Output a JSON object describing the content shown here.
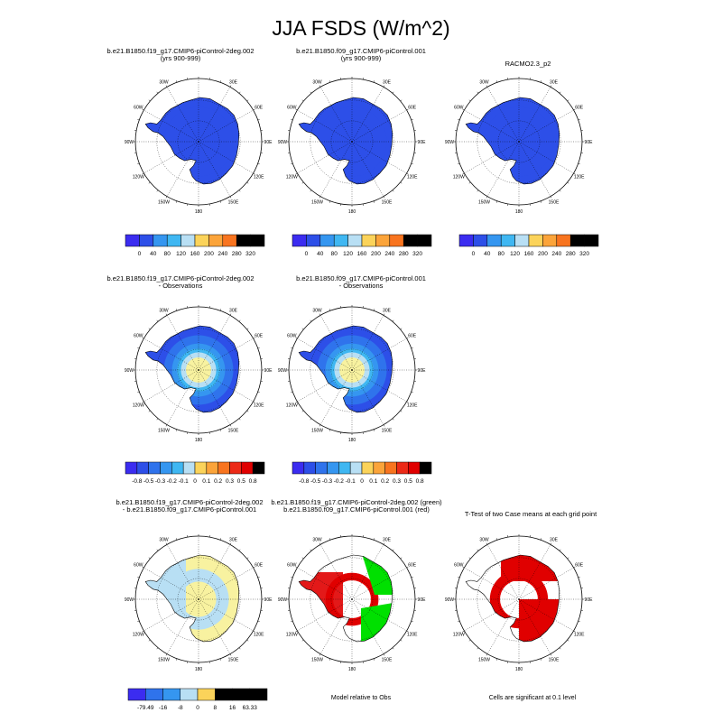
{
  "page_title": "JJA FSDS (W/m^2)",
  "colors": {
    "abs_scale": [
      "#3b2cf0",
      "#2d4fe8",
      "#2f73ec",
      "#3596f0",
      "#3fb7f2",
      "#b8dff4",
      "#f8f2a0",
      "#fbd35a",
      "#fba43a",
      "#f8741f",
      "#ec2a17",
      "#e00000",
      "#c0272d"
    ],
    "diff_scale": [
      "#3b2cf0",
      "#2d4fe8",
      "#2f73ec",
      "#3596f0",
      "#3fb7f2",
      "#b8dff4",
      "#f8f2a0",
      "#fbd35a",
      "#fba43a",
      "#f8741f",
      "#ec2a17",
      "#e00000",
      "#c0272d"
    ],
    "ttest_red": "#e00000",
    "ttest_green": "#00e000"
  },
  "grid_labels": {
    "lon": [
      "30W",
      "30E",
      "60W",
      "60E",
      "90W",
      "90E",
      "120W",
      "120E",
      "150W",
      "150E",
      "180"
    ]
  },
  "rows": [
    {
      "panels": [
        {
          "title_lines": [
            "b.e21.B1850.f19_g17.CMIP6-piControl-2deg.002",
            "(yrs 900-999)"
          ],
          "fill": "abs"
        },
        {
          "title_lines": [
            "b.e21.B1850.f09_g17.CMIP6-piControl.001",
            "(yrs 900-999)"
          ],
          "fill": "abs"
        },
        {
          "title_lines": [
            "RACMO2.3_p2"
          ],
          "fill": "abs"
        }
      ],
      "colorbars": [
        {
          "ticks": [
            "0",
            "40",
            "80",
            "120",
            "160",
            "200",
            "240",
            "280",
            "320"
          ]
        },
        {
          "ticks": [
            "0",
            "40",
            "80",
            "120",
            "160",
            "200",
            "240",
            "280",
            "320"
          ]
        },
        {
          "ticks": [
            "0",
            "40",
            "80",
            "120",
            "160",
            "200",
            "240",
            "280",
            "320"
          ]
        }
      ]
    },
    {
      "panels": [
        {
          "title_lines": [
            "b.e21.B1850.f19_g17.CMIP6-piControl-2deg.002",
            "- Observations"
          ],
          "fill": "diff"
        },
        {
          "title_lines": [
            "b.e21.B1850.f09_g17.CMIP6-piControl.001",
            "- Observations"
          ],
          "fill": "diff"
        }
      ],
      "colorbars": [
        {
          "ticks": [
            "-0.8",
            "-0.5",
            "-0.3",
            "-0.2",
            "-0.1",
            "0",
            "0.1",
            "0.2",
            "0.3",
            "0.5",
            "0.8"
          ]
        },
        {
          "ticks": [
            "-0.8",
            "-0.5",
            "-0.3",
            "-0.2",
            "-0.1",
            "0",
            "0.1",
            "0.2",
            "0.3",
            "0.5",
            "0.8"
          ]
        }
      ]
    },
    {
      "panels": [
        {
          "title_lines": [
            "b.e21.B1850.f19_g17.CMIP6-piControl-2deg.002",
            "- b.e21.B1850.f09_g17.CMIP6-piControl.001"
          ],
          "fill": "casediff"
        },
        {
          "title_lines": [
            "b.e21.B1850.f19_g17.CMIP6-piControl-2deg.002 (green)",
            "b.e21.B1850.f09_g17.CMIP6-piControl.001 (red)"
          ],
          "fill": "redgreen"
        },
        {
          "title_lines": [
            "T-Test of two Case means at each grid point"
          ],
          "fill": "ttest"
        }
      ],
      "colorbars": [
        {
          "ticks": [
            "-79.49",
            "-16",
            "-8",
            "0",
            "8",
            "16",
            "63.33"
          ]
        }
      ],
      "notes": [
        "Model relative to Obs",
        "Cells are significant at 0.1 level"
      ]
    }
  ],
  "chart_data": [
    {
      "type": "heatmap",
      "title": "b.e21.B1850.f19_g17.CMIP6-piControl-2deg.002 (yrs 900-999)",
      "colorbar_ticks": [
        0,
        40,
        80,
        120,
        160,
        200,
        240,
        280,
        320
      ]
    },
    {
      "type": "heatmap",
      "title": "b.e21.B1850.f09_g17.CMIP6-piControl.001 (yrs 900-999)",
      "colorbar_ticks": [
        0,
        40,
        80,
        120,
        160,
        200,
        240,
        280,
        320
      ]
    },
    {
      "type": "heatmap",
      "title": "RACMO2.3_p2",
      "colorbar_ticks": [
        0,
        40,
        80,
        120,
        160,
        200,
        240,
        280,
        320
      ]
    },
    {
      "type": "heatmap",
      "title": "b.e21.B1850.f19_g17.CMIP6-piControl-2deg.002 - Observations",
      "colorbar_ticks": [
        -0.8,
        -0.5,
        -0.3,
        -0.2,
        -0.1,
        0,
        0.1,
        0.2,
        0.3,
        0.5,
        0.8
      ]
    },
    {
      "type": "heatmap",
      "title": "b.e21.B1850.f09_g17.CMIP6-piControl.001 - Observations",
      "colorbar_ticks": [
        -0.8,
        -0.5,
        -0.3,
        -0.2,
        -0.1,
        0,
        0.1,
        0.2,
        0.3,
        0.5,
        0.8
      ]
    },
    {
      "type": "heatmap",
      "title": "b.e21.B1850.f19_g17.CMIP6-piControl-2deg.002 - b.e21.B1850.f09_g17.CMIP6-piControl.001",
      "colorbar_ticks": [
        -79.49,
        -16,
        -8,
        0,
        8,
        16,
        63.33
      ]
    },
    {
      "type": "heatmap",
      "title": "Model relative to Obs"
    },
    {
      "type": "heatmap",
      "title": "T-Test of two Case means at each grid point"
    }
  ]
}
